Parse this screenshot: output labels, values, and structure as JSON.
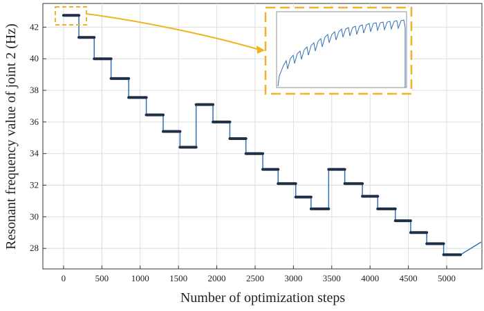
{
  "chart_data": {
    "type": "line",
    "x_label": "Number of optimization steps",
    "y_label": "Resonant frequency value of joint 2 (Hz)",
    "x": [
      0,
      200,
      200,
      400,
      400,
      620,
      620,
      850,
      850,
      1080,
      1080,
      1300,
      1300,
      1520,
      1520,
      1730,
      1730,
      1950,
      1950,
      2170,
      2170,
      2380,
      2380,
      2600,
      2600,
      2800,
      2800,
      3030,
      3030,
      3230,
      3230,
      3460,
      3460,
      3670,
      3670,
      3900,
      3900,
      4100,
      4100,
      4330,
      4330,
      4530,
      4530,
      4740,
      4740,
      4960,
      4960,
      5180,
      5450
    ],
    "series": [
      {
        "color": "#2f6fb5",
        "values": [
          42.75,
          42.75,
          41.35,
          41.35,
          40.0,
          40.0,
          38.75,
          38.75,
          37.55,
          37.55,
          36.45,
          36.45,
          35.4,
          35.4,
          34.4,
          34.4,
          37.1,
          37.1,
          36.0,
          36.0,
          34.95,
          34.95,
          34.0,
          34.0,
          33.0,
          33.0,
          32.1,
          32.1,
          31.25,
          31.25,
          30.5,
          30.5,
          33.0,
          33.0,
          32.1,
          32.1,
          31.3,
          31.3,
          30.5,
          30.5,
          29.75,
          29.75,
          29.0,
          29.0,
          28.3,
          28.3,
          27.6,
          27.6,
          28.4
        ]
      }
    ],
    "xlim": [
      -270,
      5460
    ],
    "ylim": [
      26.7,
      43.5
    ],
    "xticks": [
      0,
      500,
      1000,
      1500,
      2000,
      2500,
      3000,
      3500,
      4000,
      4500,
      5000
    ],
    "yticks": [
      28,
      30,
      32,
      34,
      36,
      38,
      40,
      42
    ],
    "grid": true
  }
}
